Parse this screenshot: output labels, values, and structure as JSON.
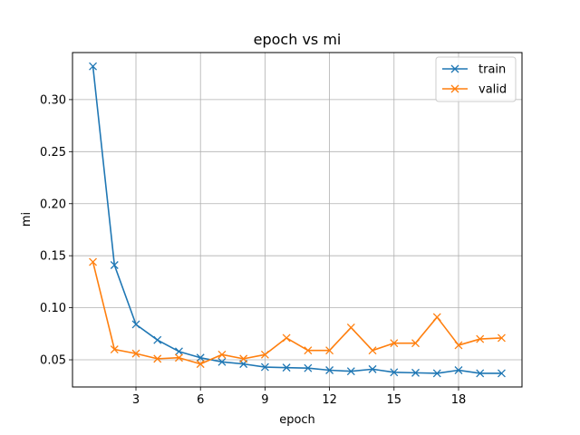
{
  "chart_data": {
    "type": "line",
    "title": "epoch vs mi",
    "xlabel": "epoch",
    "ylabel": "mi",
    "xlim": [
      0.05,
      20.95
    ],
    "ylim": [
      0.0239,
      0.3452
    ],
    "grid": true,
    "legend_position": "top-right",
    "marker": "x",
    "x": [
      1,
      2,
      3,
      4,
      5,
      6,
      7,
      8,
      9,
      10,
      11,
      12,
      13,
      14,
      15,
      16,
      17,
      18,
      19,
      20
    ],
    "x_ticks": [
      3,
      6,
      9,
      12,
      15,
      18
    ],
    "y_ticks": [
      0.05,
      0.1,
      0.15,
      0.2,
      0.25,
      0.3
    ],
    "x_tick_labels": [
      "3",
      "6",
      "9",
      "12",
      "15",
      "18"
    ],
    "y_tick_labels": [
      "0.05",
      "0.10",
      "0.15",
      "0.20",
      "0.25",
      "0.30"
    ],
    "series": [
      {
        "name": "train",
        "color": "#1f77b4",
        "values": [
          0.332,
          0.141,
          0.084,
          0.069,
          0.058,
          0.052,
          0.048,
          0.046,
          0.043,
          0.0425,
          0.042,
          0.04,
          0.039,
          0.041,
          0.038,
          0.0375,
          0.037,
          0.04,
          0.037,
          0.037
        ]
      },
      {
        "name": "valid",
        "color": "#ff7f0e",
        "values": [
          0.144,
          0.06,
          0.056,
          0.051,
          0.052,
          0.046,
          0.055,
          0.051,
          0.055,
          0.071,
          0.059,
          0.059,
          0.081,
          0.059,
          0.066,
          0.066,
          0.091,
          0.064,
          0.07,
          0.071
        ]
      }
    ]
  }
}
